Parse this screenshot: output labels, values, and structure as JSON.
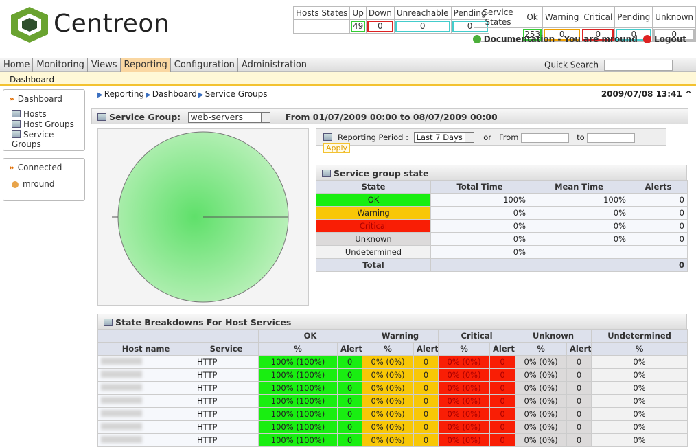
{
  "header": {
    "logo": "Centreon",
    "host_states": {
      "headers": [
        "Hosts States",
        "Up",
        "Down",
        "Unreachable",
        "Pending"
      ],
      "values": [
        "49",
        "0",
        "0",
        "0"
      ]
    },
    "service_states": {
      "headers": [
        "Service States",
        "Ok",
        "Warning",
        "Critical",
        "Pending",
        "Unknown"
      ],
      "values": [
        "253",
        "0",
        "0",
        "0",
        "0"
      ]
    },
    "documentation": "Documentation - You are mround",
    "logout": "Logout"
  },
  "menu": {
    "items": [
      "Home",
      "Monitoring",
      "Views",
      "Reporting",
      "Configuration",
      "Administration"
    ],
    "quick_search": "Quick Search",
    "submenu": "Dashboard"
  },
  "sidebar": {
    "dashboard": {
      "title": "Dashboard",
      "items": [
        "Hosts",
        "Host Groups",
        "Service Groups"
      ]
    },
    "connected": {
      "title": "Connected",
      "user": "mround"
    }
  },
  "breadcrumb": {
    "items": [
      "Reporting",
      "Dashboard",
      "Service Groups"
    ],
    "datetime": "2009/07/08 13:41"
  },
  "service_group": {
    "label": "Service Group:",
    "selected": "web-servers",
    "period": "From 01/07/2009 00:00 to 08/07/2009 00:00"
  },
  "reporting_period": {
    "label": "Reporting Period :",
    "selected": "Last 7 Days",
    "or": "or",
    "from": "From",
    "to": "to",
    "apply": "Apply"
  },
  "state_table": {
    "title": "Service group state",
    "headers": [
      "State",
      "Total Time",
      "Mean Time",
      "Alerts"
    ],
    "rows": [
      [
        "OK",
        "100%",
        "100%",
        "0"
      ],
      [
        "Warning",
        "0%",
        "0%",
        "0"
      ],
      [
        "Critical",
        "0%",
        "0%",
        "0"
      ],
      [
        "Unknown",
        "0%",
        "0%",
        "0"
      ],
      [
        "Undetermined",
        "0%"
      ]
    ],
    "total": {
      "label": "Total",
      "alerts": "0"
    }
  },
  "breakdown": {
    "title": "State Breakdowns For Host Services",
    "groups": [
      "OK",
      "Warning",
      "Critical",
      "Unknown",
      "Undetermined"
    ],
    "sub_headers": [
      "Host name",
      "Service",
      "%",
      "Alert",
      "%",
      "Alert",
      "%",
      "Alert",
      "%",
      "Alert",
      "%"
    ],
    "rows": [
      [
        "HTTP",
        "100% (100%)",
        "0",
        "0% (0%)",
        "0",
        "0% (0%)",
        "0",
        "0% (0%)",
        "0",
        "0%"
      ],
      [
        "HTTP",
        "100% (100%)",
        "0",
        "0% (0%)",
        "0",
        "0% (0%)",
        "0",
        "0% (0%)",
        "0",
        "0%"
      ],
      [
        "HTTP",
        "100% (100%)",
        "0",
        "0% (0%)",
        "0",
        "0% (0%)",
        "0",
        "0% (0%)",
        "0",
        "0%"
      ],
      [
        "HTTP",
        "100% (100%)",
        "0",
        "0% (0%)",
        "0",
        "0% (0%)",
        "0",
        "0% (0%)",
        "0",
        "0%"
      ],
      [
        "HTTP",
        "100% (100%)",
        "0",
        "0% (0%)",
        "0",
        "0% (0%)",
        "0",
        "0% (0%)",
        "0",
        "0%"
      ],
      [
        "HTTP",
        "100% (100%)",
        "0",
        "0% (0%)",
        "0",
        "0% (0%)",
        "0",
        "0% (0%)",
        "0",
        "0%"
      ],
      [
        "HTTP",
        "100% (100%)",
        "0",
        "0% (0%)",
        "0",
        "0% (0%)",
        "0",
        "0% (0%)",
        "0",
        "0%"
      ]
    ]
  }
}
